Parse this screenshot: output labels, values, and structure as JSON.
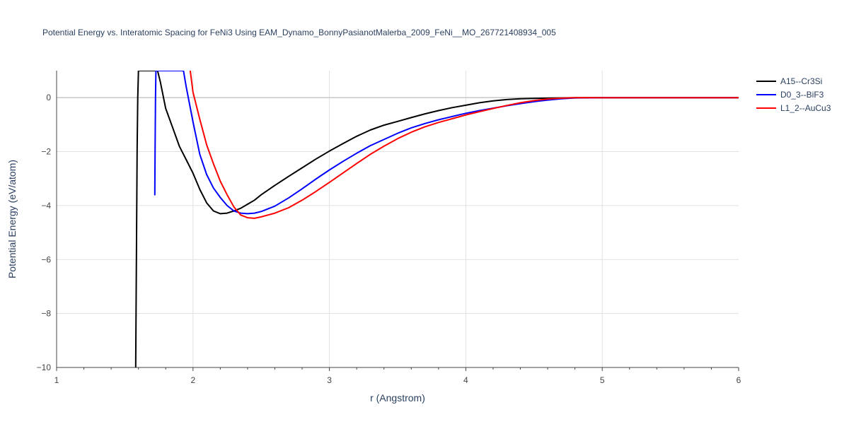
{
  "chart_data": {
    "type": "line",
    "title": "Potential Energy vs. Interatomic Spacing for FeNi3 Using EAM_Dynamo_BonnyPasianotMalerba_2009_FeNi__MO_267721408934_005",
    "xlabel": "r (Angstrom)",
    "ylabel": "Potential Energy (eV/atom)",
    "xlim": [
      1,
      6
    ],
    "ylim": [
      -10,
      1
    ],
    "xticks": [
      1,
      2,
      3,
      4,
      5,
      6
    ],
    "yticks": [
      0,
      -2,
      -4,
      -6,
      -8,
      -10
    ],
    "ytick_labels": [
      "0",
      "−2",
      "−4",
      "−6",
      "−8",
      "−10"
    ],
    "grid": true,
    "legend_position": "top-right",
    "series": [
      {
        "name": "A15--Cr3Si",
        "color": "#000000",
        "x": [
          1.58,
          1.585,
          1.59,
          1.595,
          1.6,
          1.74,
          1.76,
          1.8,
          1.85,
          1.9,
          1.95,
          2.0,
          2.05,
          2.1,
          2.15,
          2.2,
          2.25,
          2.3,
          2.35,
          2.4,
          2.45,
          2.5,
          2.6,
          2.7,
          2.8,
          2.9,
          3.0,
          3.1,
          3.2,
          3.3,
          3.4,
          3.5,
          3.6,
          3.7,
          3.8,
          3.9,
          4.0,
          4.1,
          4.2,
          4.3,
          4.4,
          4.5,
          4.6,
          4.7,
          4.8,
          5.0,
          5.5,
          6.0
        ],
        "y": [
          -10,
          -6,
          -2,
          0,
          1,
          1,
          0.6,
          -0.4,
          -1.1,
          -1.8,
          -2.3,
          -2.8,
          -3.4,
          -3.9,
          -4.2,
          -4.3,
          -4.28,
          -4.2,
          -4.1,
          -3.95,
          -3.8,
          -3.6,
          -3.25,
          -2.92,
          -2.6,
          -2.28,
          -1.98,
          -1.7,
          -1.43,
          -1.2,
          -1.02,
          -0.88,
          -0.74,
          -0.6,
          -0.48,
          -0.37,
          -0.28,
          -0.19,
          -0.12,
          -0.07,
          -0.04,
          -0.03,
          -0.02,
          -0.01,
          0,
          0,
          0,
          0
        ]
      },
      {
        "name": "D0_3--BiF3",
        "color": "#0000ff",
        "x": [
          1.72,
          1.722,
          1.725,
          1.728,
          1.73,
          1.93,
          1.95,
          2.0,
          2.05,
          2.1,
          2.15,
          2.2,
          2.25,
          2.3,
          2.35,
          2.4,
          2.45,
          2.5,
          2.6,
          2.7,
          2.8,
          2.9,
          3.0,
          3.1,
          3.2,
          3.3,
          3.4,
          3.5,
          3.6,
          3.7,
          3.8,
          3.9,
          4.0,
          4.1,
          4.2,
          4.3,
          4.4,
          4.5,
          4.6,
          4.7,
          4.8,
          5.0,
          5.5,
          6.0
        ],
        "y": [
          -3.6,
          -2,
          0,
          1,
          1,
          1,
          0.4,
          -0.9,
          -2.1,
          -2.85,
          -3.35,
          -3.7,
          -4.0,
          -4.2,
          -4.28,
          -4.3,
          -4.28,
          -4.22,
          -4.02,
          -3.72,
          -3.38,
          -3.02,
          -2.68,
          -2.36,
          -2.06,
          -1.78,
          -1.55,
          -1.32,
          -1.12,
          -0.96,
          -0.82,
          -0.7,
          -0.58,
          -0.48,
          -0.39,
          -0.3,
          -0.22,
          -0.15,
          -0.09,
          -0.04,
          -0.01,
          0,
          0,
          0
        ]
      },
      {
        "name": "L1_2--AuCu3",
        "color": "#ff0000",
        "x": [
          1.98,
          2.0,
          2.05,
          2.1,
          2.15,
          2.2,
          2.25,
          2.3,
          2.35,
          2.4,
          2.45,
          2.5,
          2.6,
          2.7,
          2.8,
          2.9,
          3.0,
          3.1,
          3.2,
          3.3,
          3.4,
          3.5,
          3.6,
          3.7,
          3.8,
          3.9,
          4.0,
          4.1,
          4.2,
          4.3,
          4.4,
          4.5,
          4.6,
          4.7,
          4.8,
          5.0,
          5.5,
          6.0
        ],
        "y": [
          1,
          0.2,
          -0.8,
          -1.75,
          -2.45,
          -3.1,
          -3.6,
          -4.05,
          -4.35,
          -4.45,
          -4.47,
          -4.42,
          -4.28,
          -4.08,
          -3.8,
          -3.48,
          -3.14,
          -2.79,
          -2.44,
          -2.1,
          -1.8,
          -1.52,
          -1.28,
          -1.08,
          -0.92,
          -0.78,
          -0.64,
          -0.52,
          -0.4,
          -0.29,
          -0.19,
          -0.11,
          -0.05,
          -0.02,
          0,
          0,
          0,
          0
        ]
      }
    ]
  }
}
